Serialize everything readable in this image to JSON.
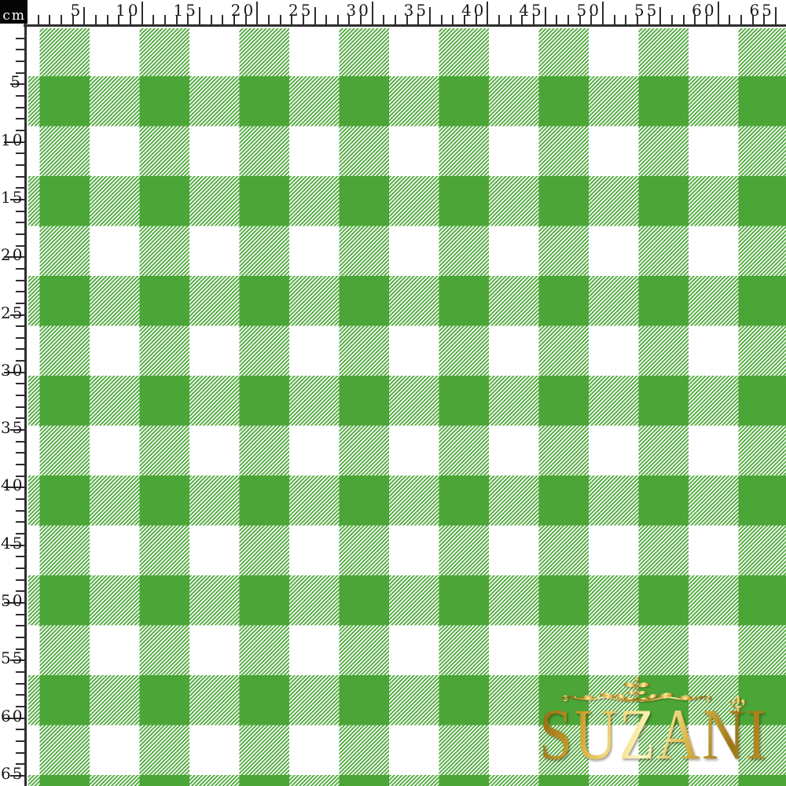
{
  "corner": {
    "unit_label": "cm"
  },
  "rulers": {
    "top": {
      "labels": [
        "5",
        "10",
        "15",
        "20",
        "25",
        "30",
        "35",
        "40",
        "45",
        "50",
        "55",
        "60",
        "65"
      ]
    },
    "left": {
      "labels": [
        "5",
        "10",
        "15",
        "20",
        "25",
        "30",
        "35",
        "40",
        "45",
        "50",
        "55",
        "60",
        "65"
      ]
    }
  },
  "fabric": {
    "pattern_name": "green-white gingham buffalo check",
    "colors": {
      "check_green": "#4ba637",
      "ground_white": "#ffffff"
    }
  },
  "logo": {
    "text": "SUZANI",
    "ornament_icon": "floral-flourish",
    "accent_icon": "fleur-de-lis",
    "colors": {
      "gold_dark": "#8a6412",
      "gold_mid": "#d9ae44",
      "gold_light": "#fdf2b0"
    }
  },
  "colors": {
    "ruler_ink": "#2e2e2e",
    "corner_bg": "#050505",
    "corner_text": "#ffffff",
    "page_bg": "#ffffff"
  }
}
